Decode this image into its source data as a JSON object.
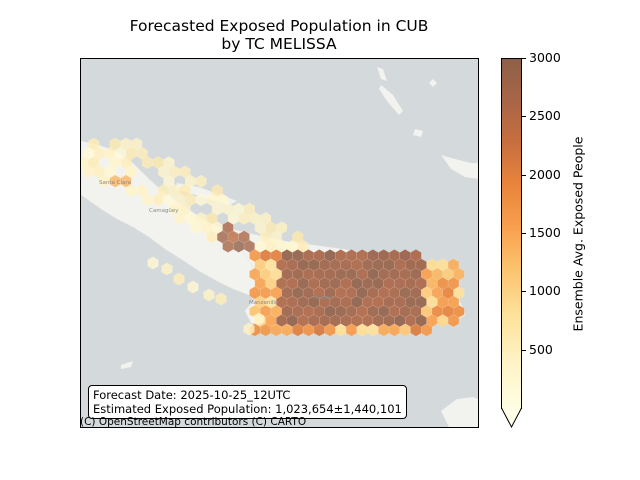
{
  "title": "Forecasted Exposed Population in CUB\nby TC MELISSA",
  "title_line1": "Forecasted Exposed Population in CUB",
  "title_line2": "by TC MELISSA",
  "info_box": {
    "forecast_date": "Forecast Date: 2025-10-25_12UTC",
    "estimated_population": "Estimated Exposed Population: 1,023,654±1,440,101"
  },
  "attribution": "(C) OpenStreetMap contributors (C) CARTO",
  "colorbar": {
    "label": "Ensemble Avg. Exposed People",
    "ticks": [
      "500",
      "1000",
      "1500",
      "2000",
      "2500",
      "3000"
    ],
    "min": 0,
    "max": 3000,
    "extend": "min"
  },
  "basemap_labels": [
    {
      "name": "Santa Clara",
      "text": "Santa Clara"
    },
    {
      "name": "Camagüey",
      "text": "Camagüey"
    },
    {
      "name": "Manzanillo",
      "text": "Manzanillo"
    },
    {
      "name": "Holguín",
      "text": "Holguín"
    }
  ],
  "colors": {
    "ocean": "#d4d9db",
    "land": "#f2f2ef",
    "low": "#fffee2",
    "mid": "#fcc36e",
    "high": "#8e6049"
  }
}
